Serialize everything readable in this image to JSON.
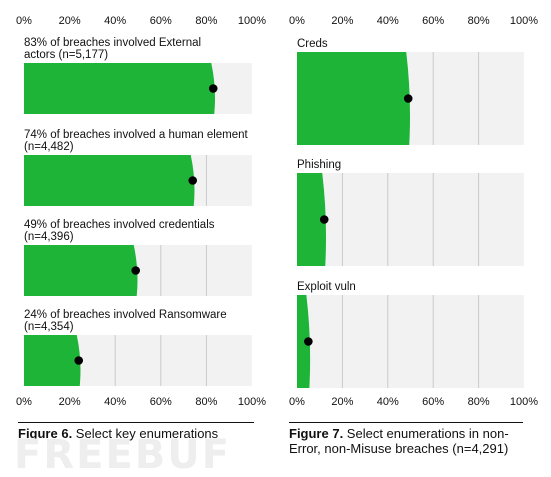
{
  "figure6": {
    "caption_label": "Figure 6.",
    "caption_text": " Select key enumerations"
  },
  "figure7": {
    "caption_label": "Figure 7.",
    "caption_text": " Select enumerations in non-Error, non-Misuse breaches (n=4,291)"
  },
  "watermark": "FREEBUF",
  "colors": {
    "fill": "#1db438",
    "track": "#f2f2f2",
    "gridline": "#c9c9c9",
    "dot": "#000000",
    "text": "#111111"
  },
  "chart_data": [
    {
      "type": "bar",
      "orientation": "horizontal",
      "title": "Select key enumerations",
      "xlim": [
        0,
        100
      ],
      "x_ticks": [
        "0%",
        "20%",
        "40%",
        "60%",
        "80%",
        "100%"
      ],
      "grid": true,
      "categories": [
        "83% of breaches involved External actors (n=5,177)",
        "74% of breaches involved a human element (n=4,482)",
        "49% of breaches involved credentials (n=4,396)",
        "24% of breaches involved Ransomware (n=4,354)"
      ],
      "label_lines": [
        [
          "83% of breaches involved External",
          "actors (n=5,177)"
        ],
        [
          "74% of breaches involved a human element",
          "(n=4,482)"
        ],
        [
          "49% of breaches involved credentials",
          "(n=4,396)"
        ],
        [
          "24% of breaches involved Ransomware",
          "(n=4,354)"
        ]
      ],
      "values": [
        83,
        74,
        49,
        24
      ]
    },
    {
      "type": "bar",
      "orientation": "horizontal",
      "title": "Select enumerations in non-Error, non-Misuse breaches (n=4,291)",
      "xlim": [
        0,
        100
      ],
      "x_ticks": [
        "0%",
        "20%",
        "40%",
        "60%",
        "80%",
        "100%"
      ],
      "grid": true,
      "categories": [
        "Creds",
        "Phishing",
        "Exploit vuln"
      ],
      "label_lines": [
        [
          "Creds"
        ],
        [
          "Phishing"
        ],
        [
          "Exploit vuln"
        ]
      ],
      "values": [
        49,
        12,
        5
      ]
    }
  ]
}
